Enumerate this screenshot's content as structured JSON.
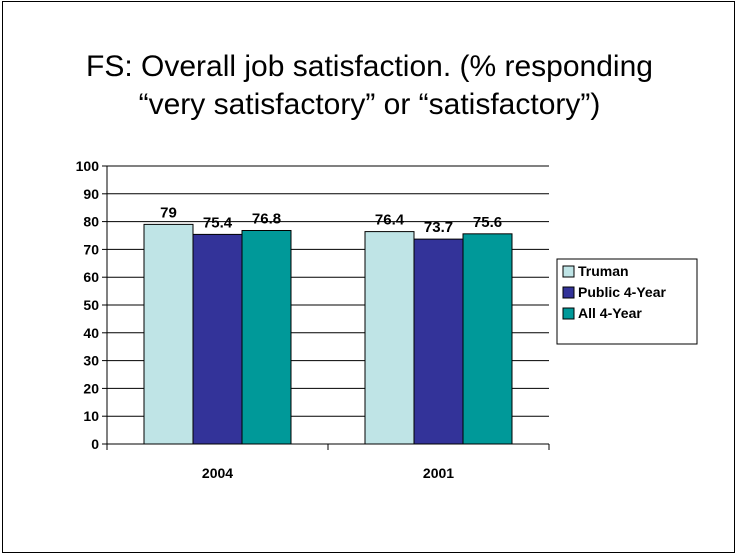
{
  "slide": {
    "title_line1": "FS: Overall job satisfaction. (% responding",
    "title_line2": "“very satisfactory” or “satisfactory”)"
  },
  "chart_data": {
    "type": "bar",
    "categories": [
      "2004",
      "2001"
    ],
    "series": [
      {
        "name": "Truman",
        "values": [
          79,
          76.4
        ],
        "color": "#bfe4e6"
      },
      {
        "name": "Public 4-Year",
        "values": [
          75.4,
          73.7
        ],
        "color": "#333399"
      },
      {
        "name": "All 4-Year",
        "values": [
          76.8,
          75.6
        ],
        "color": "#009999"
      }
    ],
    "data_labels": [
      [
        "79",
        "75.4",
        "76.8"
      ],
      [
        "76.4",
        "73.7",
        "75.6"
      ]
    ],
    "ylim": [
      0,
      100
    ],
    "yticks": [
      "0",
      "10",
      "20",
      "30",
      "40",
      "50",
      "60",
      "70",
      "80",
      "90",
      "100"
    ],
    "grid": true,
    "legend": "right"
  }
}
